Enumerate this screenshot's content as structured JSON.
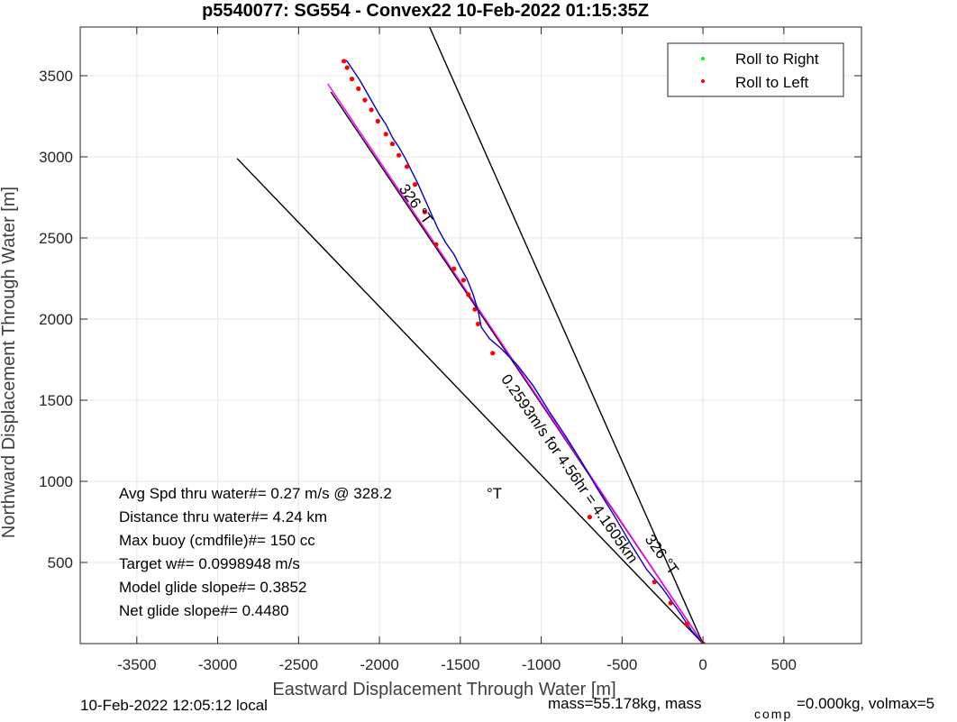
{
  "chart_data": {
    "type": "line",
    "title": "p5540077: SG554 - Convex22 10-Feb-2022 01:15:35Z",
    "xlabel": "Eastward Displacement Through Water [m]",
    "ylabel": "Northward Displacement Through Water [m]",
    "xlim": [
      -3850,
      980
    ],
    "ylim": [
      0,
      3800
    ],
    "xticks": [
      -3500,
      -3000,
      -2500,
      -2000,
      -1500,
      -1000,
      -500,
      0,
      500
    ],
    "yticks": [
      500,
      1000,
      1500,
      2000,
      2500,
      3000,
      3500
    ],
    "grid": true,
    "legend_position": "top-right",
    "legend": [
      {
        "label": "Roll to Right",
        "color": "#00ff00"
      },
      {
        "label": "Roll to Left",
        "color": "#ff0000"
      }
    ],
    "glider_track": {
      "color": "#0000cc",
      "x": [
        0,
        -70,
        -150,
        -250,
        -350,
        -450,
        -550,
        -650,
        -750,
        -850,
        -950,
        -1050,
        -1150,
        -1250,
        -1320,
        -1370,
        -1390,
        -1420,
        -1460,
        -1500,
        -1540,
        -1590,
        -1640,
        -1680,
        -1720,
        -1760,
        -1800,
        -1840,
        -1880,
        -1920,
        -1960,
        -2000,
        -2040,
        -2080,
        -2120,
        -2160,
        -2200,
        -2225
      ],
      "y": [
        0,
        80,
        200,
        340,
        460,
        620,
        790,
        950,
        1120,
        1280,
        1430,
        1590,
        1720,
        1820,
        1880,
        1950,
        2050,
        2150,
        2250,
        2320,
        2400,
        2470,
        2560,
        2650,
        2740,
        2830,
        2910,
        2990,
        3060,
        3120,
        3200,
        3260,
        3330,
        3400,
        3470,
        3530,
        3590,
        3600
      ]
    },
    "roll_left_points": {
      "color": "#ff0000",
      "x": [
        0,
        -100,
        -200,
        -300,
        -700,
        -1300,
        -1390,
        -1410,
        -1450,
        -1480,
        -1540,
        -1650,
        -1720,
        -1780,
        -1830,
        -1880,
        -1920,
        -1960,
        -2010,
        -2050,
        -2090,
        -2130,
        -2170,
        -2200,
        -2220
      ],
      "y": [
        0,
        120,
        250,
        380,
        780,
        1790,
        1970,
        2060,
        2150,
        2240,
        2310,
        2460,
        2660,
        2830,
        2940,
        3010,
        3080,
        3140,
        3220,
        3290,
        3350,
        3420,
        3480,
        3550,
        3590
      ]
    },
    "roll_right_points": {
      "color": "#00ff00",
      "x": [],
      "y": []
    },
    "current_vector": {
      "color": "#ff00ff",
      "x": [
        0,
        -2320
      ],
      "y": [
        0,
        3450
      ]
    },
    "heading_lines": {
      "color": "#000000",
      "lines": [
        {
          "x": [
            0,
            -1690
          ],
          "y": [
            0,
            3800
          ]
        },
        {
          "x": [
            0,
            -2880
          ],
          "y": [
            0,
            2990
          ]
        },
        {
          "x": [
            0,
            -2300
          ],
          "y": [
            0,
            3400
          ]
        }
      ]
    },
    "annotations": [
      {
        "text": "326 °T",
        "x": -1800,
        "y": 2690,
        "angle": 54
      },
      {
        "text": "0.2593m/s for 4.56hr = 4.1605km",
        "x": -850,
        "y": 1060,
        "angle": 55
      },
      {
        "text": "326 °T",
        "x": -280,
        "y": 530,
        "angle": 54
      }
    ]
  },
  "stats": {
    "avg_speed": "Avg Spd thru water#=  0.27 m/s @ 328.2",
    "avg_speed_unit": "°T",
    "distance": "Distance thru water#=  4.24 km",
    "max_buoy": "Max buoy (cmdfile)#= 150 cc",
    "target_w": "Target w#= 0.0998948 m/s",
    "model_glide": "Model glide slope#= 0.3852",
    "net_glide": "Net glide slope#= 0.4480"
  },
  "footer": {
    "local_time": "10-Feb-2022 12:05:12 local",
    "mass": "mass=55.178kg, mass",
    "comp_sub": "comp",
    "comp_rest": "=0.000kg, volmax=5"
  }
}
